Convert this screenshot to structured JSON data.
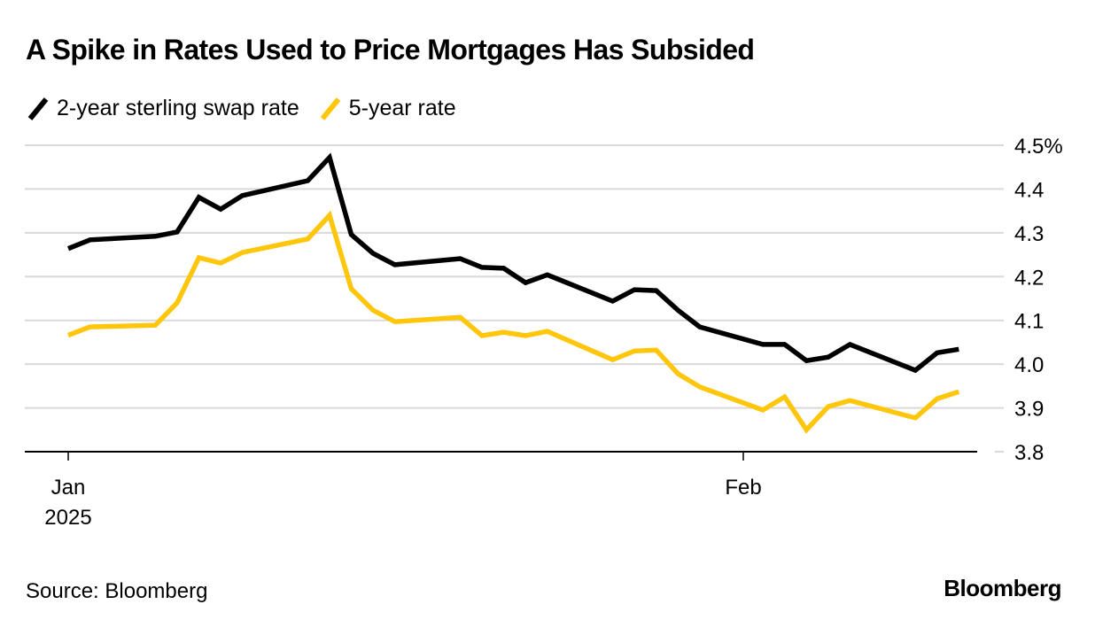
{
  "header": {
    "title": "A Spike in Rates Used to Price Mortgages Has Subsided"
  },
  "footer": {
    "source": "Source: Bloomberg",
    "brand": "Bloomberg"
  },
  "colors": {
    "series_2y": "#000000",
    "series_5y": "#FFC60B",
    "grid": "#D9D9D9",
    "axis": "#000000"
  },
  "chart_data": {
    "type": "line",
    "title": "A Spike in Rates Used to Price Mortgages Has Subsided",
    "xlabel": "",
    "ylabel": "",
    "ylim": [
      3.8,
      4.5
    ],
    "yticks": [
      3.8,
      3.9,
      4.0,
      4.1,
      4.2,
      4.3,
      4.4,
      4.5
    ],
    "ytick_labels": [
      "3.8",
      "3.9",
      "4.0",
      "4.1",
      "4.2",
      "4.3",
      "4.4",
      "4.5%"
    ],
    "grid": true,
    "y_axis_side": "right",
    "legend_position": "top-left",
    "x_unit": "days since 2025-01-01",
    "xlim": [
      0,
      43
    ],
    "xticks": [
      {
        "x": 0,
        "label": "Jan",
        "sublabel": "2025"
      },
      {
        "x": 31,
        "label": "Feb",
        "sublabel": ""
      }
    ],
    "x": [
      0,
      1,
      4,
      5,
      6,
      7,
      8,
      11,
      12,
      13,
      14,
      15,
      18,
      19,
      20,
      21,
      22,
      25,
      26,
      27,
      28,
      29,
      31.9,
      32.9,
      33.9,
      34.9,
      35.9,
      38.9,
      39.9,
      40.9
    ],
    "series": [
      {
        "name": "2-year sterling swap rate",
        "color": "#000000",
        "values": [
          4.264,
          4.284,
          4.292,
          4.302,
          4.381,
          4.354,
          4.385,
          4.419,
          4.472,
          4.296,
          4.253,
          4.227,
          4.241,
          4.221,
          4.219,
          4.186,
          4.204,
          4.144,
          4.17,
          4.168,
          4.123,
          4.085,
          4.045,
          4.045,
          4.008,
          4.016,
          4.045,
          3.986,
          4.026,
          4.034
        ]
      },
      {
        "name": "5-year rate",
        "color": "#FFC60B",
        "values": [
          4.066,
          4.085,
          4.089,
          4.14,
          4.243,
          4.231,
          4.255,
          4.286,
          4.34,
          4.172,
          4.123,
          4.097,
          4.107,
          4.065,
          4.073,
          4.065,
          4.075,
          4.01,
          4.03,
          4.032,
          3.978,
          3.948,
          3.895,
          3.925,
          3.85,
          3.903,
          3.917,
          3.877,
          3.921,
          3.937
        ]
      }
    ]
  }
}
